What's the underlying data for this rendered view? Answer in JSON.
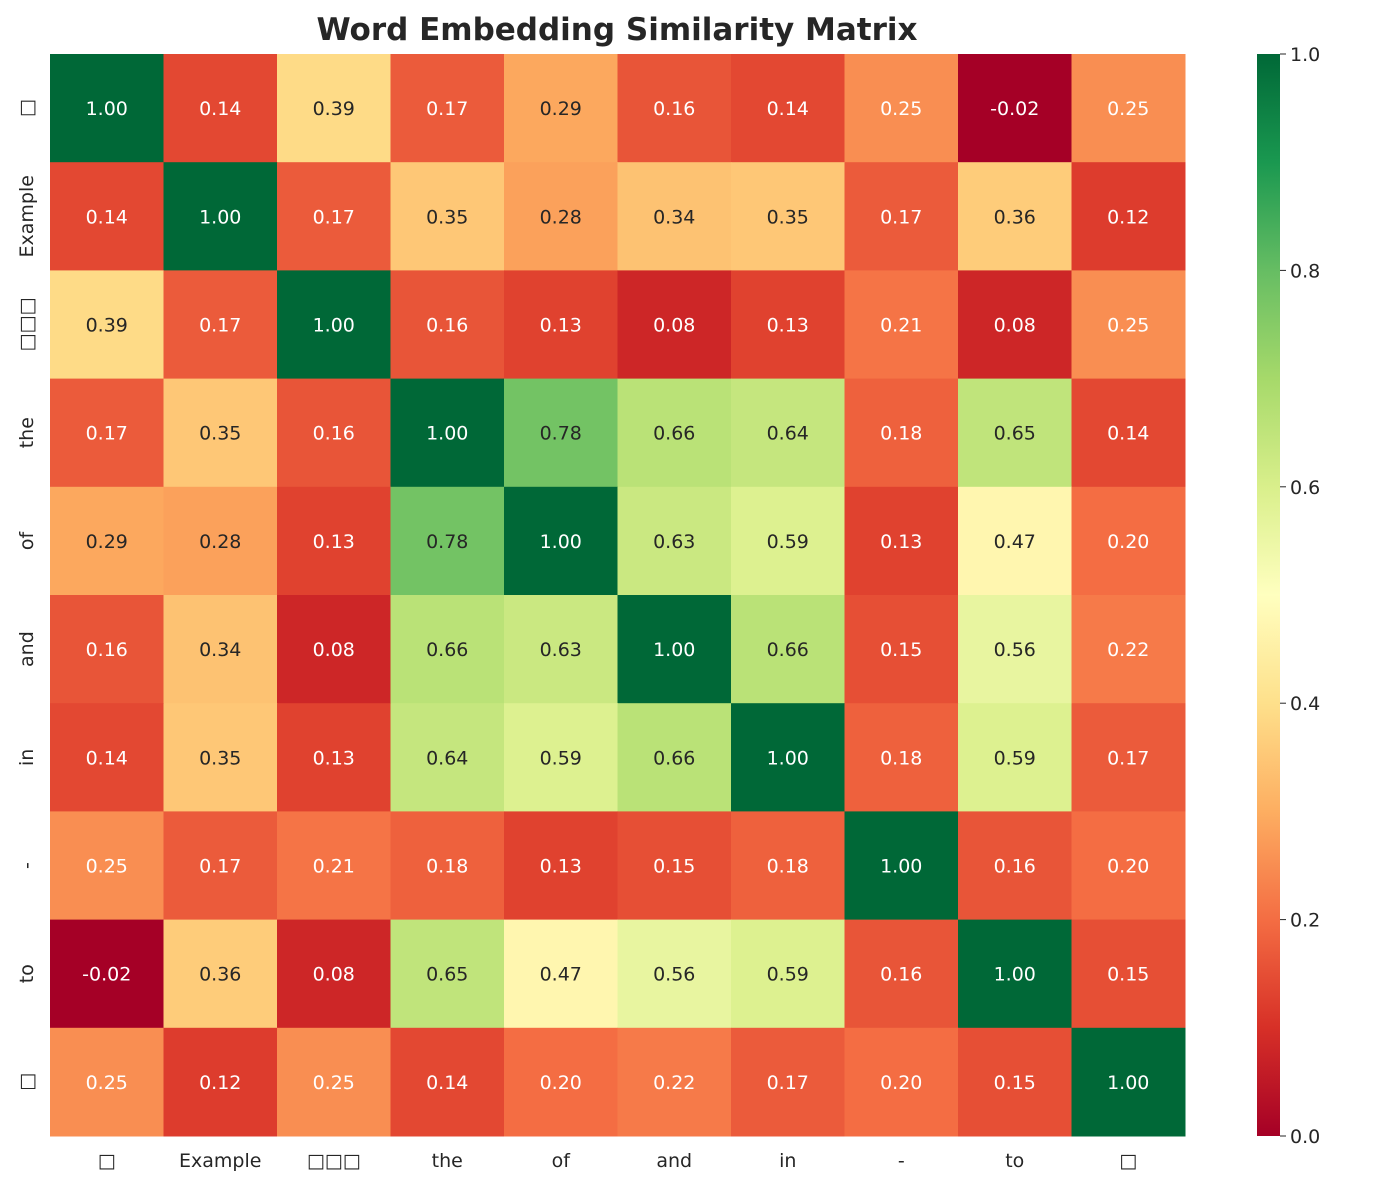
{
  "chart_data": {
    "type": "heatmap",
    "title": "Word Embedding Similarity Matrix",
    "x_labels": [
      "□",
      "Example",
      "□□□",
      "the",
      "of",
      "and",
      "in",
      "-",
      "to",
      "□"
    ],
    "y_labels": [
      "□",
      "Example",
      "□□□",
      "the",
      "of",
      "and",
      "in",
      "-",
      "to",
      "□"
    ],
    "values": [
      [
        1.0,
        0.14,
        0.39,
        0.17,
        0.29,
        0.16,
        0.14,
        0.25,
        -0.02,
        0.25
      ],
      [
        0.14,
        1.0,
        0.17,
        0.35,
        0.28,
        0.34,
        0.35,
        0.17,
        0.36,
        0.12
      ],
      [
        0.39,
        0.17,
        1.0,
        0.16,
        0.13,
        0.08,
        0.13,
        0.21,
        0.08,
        0.25
      ],
      [
        0.17,
        0.35,
        0.16,
        1.0,
        0.78,
        0.66,
        0.64,
        0.18,
        0.65,
        0.14
      ],
      [
        0.29,
        0.28,
        0.13,
        0.78,
        1.0,
        0.63,
        0.59,
        0.13,
        0.47,
        0.2
      ],
      [
        0.16,
        0.34,
        0.08,
        0.66,
        0.63,
        1.0,
        0.66,
        0.15,
        0.56,
        0.22
      ],
      [
        0.14,
        0.35,
        0.13,
        0.64,
        0.59,
        0.66,
        1.0,
        0.18,
        0.59,
        0.17
      ],
      [
        0.25,
        0.17,
        0.21,
        0.18,
        0.13,
        0.15,
        0.18,
        1.0,
        0.16,
        0.2
      ],
      [
        -0.02,
        0.36,
        0.08,
        0.65,
        0.47,
        0.56,
        0.59,
        0.16,
        1.0,
        0.15
      ],
      [
        0.25,
        0.12,
        0.25,
        0.14,
        0.2,
        0.22,
        0.17,
        0.2,
        0.15,
        1.0
      ]
    ],
    "colormap": "RdYlGn",
    "vmin": 0.0,
    "vmax": 1.0,
    "colorbar_ticks": [
      "0.0",
      "0.2",
      "0.4",
      "0.6",
      "0.8",
      "1.0"
    ],
    "annotations": true,
    "colormap_stops": [
      "#a50026",
      "#d73027",
      "#f46d43",
      "#fdae61",
      "#fee08b",
      "#ffffbf",
      "#d9ef8b",
      "#a6d96a",
      "#66bd63",
      "#1a9850",
      "#006837"
    ]
  }
}
